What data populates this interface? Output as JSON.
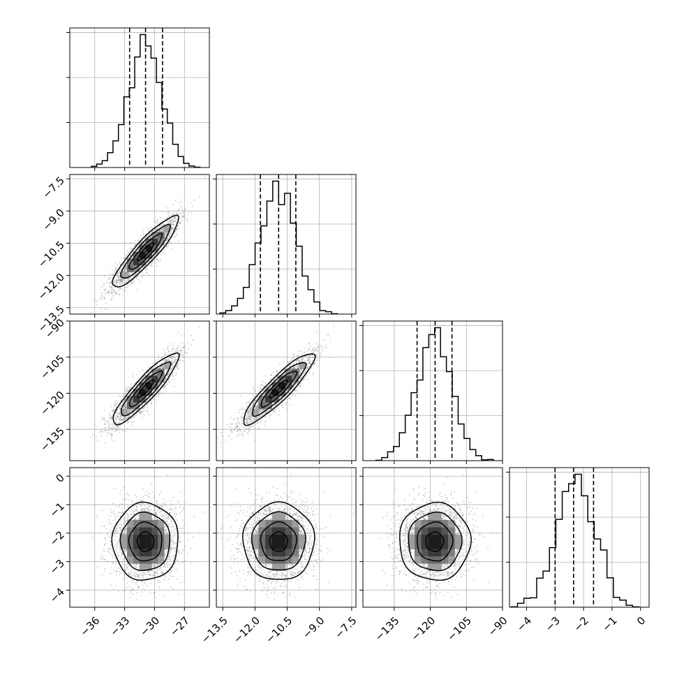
{
  "chart_data": {
    "type": "corner",
    "description_free": true,
    "params": [
      {
        "ticks": [
          -36,
          -33,
          -30,
          -27
        ],
        "range": [
          -38.5,
          -24.5
        ],
        "mean": -30.9,
        "sd": 1.65,
        "q16": -32.5,
        "q50": -30.9,
        "q84": -29.2
      },
      {
        "ticks": [
          -13.5,
          -12.0,
          -10.5,
          -9.0,
          -7.5
        ],
        "tick_labels": [
          "−13.5",
          "−12.0",
          "−10.5",
          "−9.0",
          "−7.5"
        ],
        "range": [
          -13.8,
          -7.3
        ],
        "mean": -10.9,
        "sd": 0.83,
        "q16": -11.75,
        "q50": -10.9,
        "q84": -10.1
      },
      {
        "ticks": [
          -135,
          -120,
          -105,
          -90
        ],
        "range": [
          -148,
          -90
        ],
        "mean": -118.2,
        "sd": 7.4,
        "q16": -125.5,
        "q50": -118.0,
        "q84": -111.0
      },
      {
        "ticks": [
          -4,
          -3,
          -2,
          -1,
          0
        ],
        "range": [
          -4.6,
          0.3
        ],
        "mean": -2.3,
        "sd": 0.68,
        "q16": -3.0,
        "q50": -2.35,
        "q84": -1.65
      }
    ],
    "correlations": [
      [
        1,
        0.9,
        0.9,
        0.0
      ],
      [
        0.9,
        1,
        0.9,
        0.0
      ],
      [
        0.9,
        0.9,
        1,
        0.0
      ],
      [
        0.0,
        0.0,
        0.0,
        1
      ]
    ],
    "hist_bins": 20,
    "grid": true,
    "colors": {
      "line": "#000000",
      "points": "#8a8a8a",
      "grid": "#b0b0b0"
    }
  }
}
